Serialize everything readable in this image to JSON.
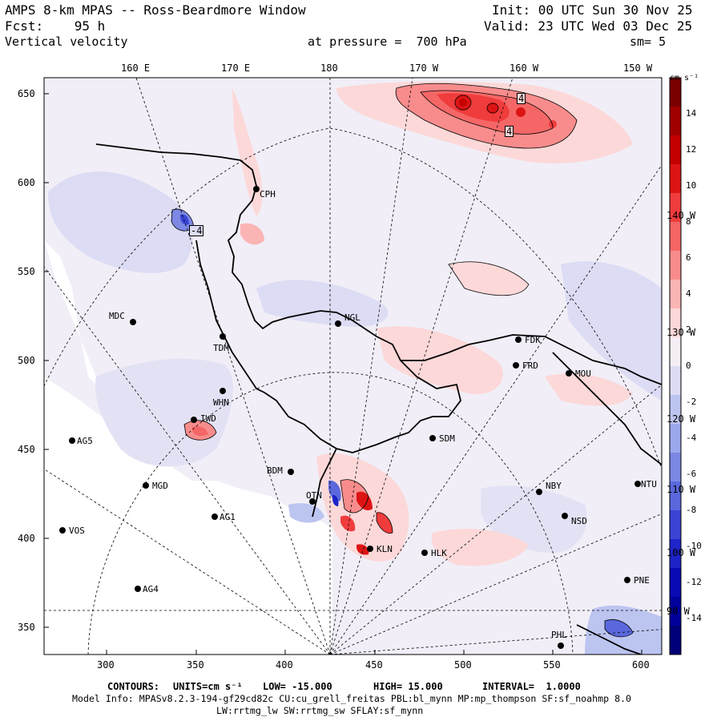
{
  "header": {
    "line1_left": "AMPS 8-km MPAS -- Ross-Beardmore Window",
    "line2_left": "Fcst:    95 h",
    "line3_left": "Vertical velocity",
    "init": "Init: 00 UTC Sun 30 Nov 25",
    "valid": "Valid: 23 UTC Wed 03 Dec 25",
    "pressure": "at pressure =  700 hPa",
    "smooth": "sm= 5"
  },
  "axes": {
    "x_ticks": [
      "300",
      "350",
      "400",
      "450",
      "500",
      "550",
      "600"
    ],
    "y_ticks": [
      "650",
      "600",
      "550",
      "500",
      "450",
      "400",
      "350"
    ],
    "lon_top": [
      "160 E",
      "170 E",
      "180",
      "170 W",
      "160 W",
      "150 W"
    ],
    "lon_right": [
      "140 W",
      "130 W",
      "120 W",
      "110 W",
      "100 W",
      "90 W"
    ]
  },
  "colorbar": {
    "units": "cm s⁻¹",
    "labels": [
      "14",
      "12",
      "10",
      "8",
      "6",
      "4",
      "2",
      "0",
      "-2",
      "-4",
      "-6",
      "-8",
      "-10",
      "-12",
      "-14"
    ],
    "colors": [
      "#7a0000",
      "#a00000",
      "#c40000",
      "#dc1414",
      "#f03c3c",
      "#f56666",
      "#f88c8c",
      "#fab4b4",
      "#fcd8d8",
      "#f4eef4",
      "#dcdcf4",
      "#bcc4f0",
      "#9ca8ec",
      "#7c88e4",
      "#5a68dc",
      "#3a44d4",
      "#1e24c8",
      "#0a0ab4",
      "#00009a",
      "#000078"
    ]
  },
  "stations": [
    {
      "id": "CPH"
    },
    {
      "id": "MDC"
    },
    {
      "id": "NGL"
    },
    {
      "id": "TDM"
    },
    {
      "id": "FDK"
    },
    {
      "id": "FRD"
    },
    {
      "id": "MOU"
    },
    {
      "id": "WHN"
    },
    {
      "id": "IWD"
    },
    {
      "id": "AG5"
    },
    {
      "id": "SDM"
    },
    {
      "id": "BDM"
    },
    {
      "id": "MGD"
    },
    {
      "id": "NBY"
    },
    {
      "id": "NTU"
    },
    {
      "id": "AG1"
    },
    {
      "id": "OTN"
    },
    {
      "id": "NSD"
    },
    {
      "id": "VOS"
    },
    {
      "id": "KLN"
    },
    {
      "id": "HLK"
    },
    {
      "id": "AG4"
    },
    {
      "id": "PNE"
    },
    {
      "id": "PHL"
    }
  ],
  "contour_labels": [
    "4",
    "4",
    "-4"
  ],
  "footer": {
    "contours_title": "CONTOURS:",
    "units_label": "UNITS=cm s⁻¹",
    "low": "LOW= -15.000",
    "high": "HIGH= 15.000",
    "interval": "INTERVAL=  1.0000",
    "model_info": "Model Info: MPASv8.2.3-194-gf29cd82c CU:cu_grell_freitas PBL:bl_mynn MP:mp_thompson SF:sf_noahmp 8.0",
    "physics": "LW:rrtmg_lw SW:rrtmg_sw SFLAY:sf_mynn"
  }
}
